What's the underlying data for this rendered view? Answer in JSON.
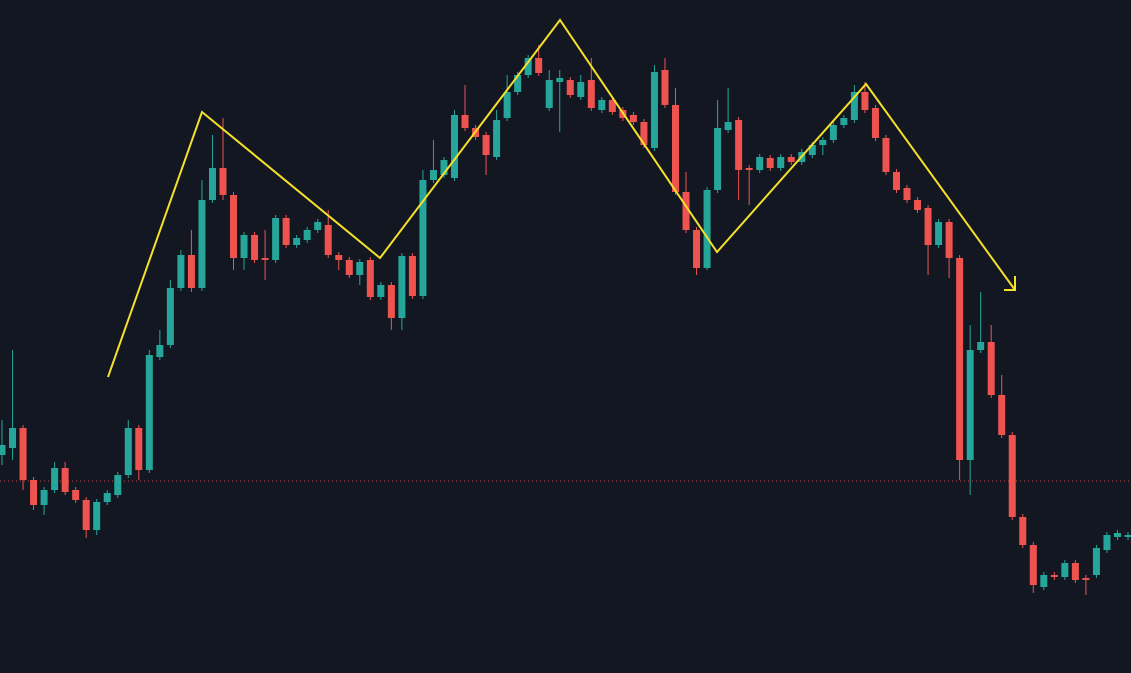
{
  "chart_data": {
    "type": "candlestick",
    "up_color": "#26a69a",
    "down_color": "#ef5350",
    "ylim": [
      27,
      700
    ],
    "open": [
      245,
      252,
      272,
      220,
      195,
      210,
      232,
      210,
      200,
      170,
      198,
      205,
      225,
      272,
      230,
      343,
      355,
      412,
      445,
      412,
      500,
      532,
      505,
      442,
      465,
      442,
      440,
      482,
      455,
      460,
      470,
      475,
      445,
      440,
      425,
      440,
      403,
      415,
      382,
      444,
      404,
      520,
      525,
      522,
      585,
      572,
      565,
      543,
      582,
      608,
      625,
      642,
      592,
      618,
      620,
      603,
      620,
      590,
      600,
      590,
      585,
      578,
      552,
      630,
      595,
      508,
      470,
      432,
      510,
      570,
      580,
      532,
      530,
      542,
      532,
      543,
      538,
      545,
      555,
      560,
      575,
      580,
      608,
      592,
      562,
      528,
      512,
      500,
      492,
      455,
      478,
      442,
      240,
      350,
      358,
      305,
      265,
      183,
      155,
      113,
      125,
      123,
      137,
      122,
      125,
      150,
      163,
      163
    ],
    "high": [
      280,
      350,
      275,
      223,
      213,
      238,
      238,
      213,
      203,
      201,
      210,
      228,
      280,
      275,
      350,
      370,
      420,
      450,
      470,
      520,
      565,
      582,
      508,
      468,
      468,
      470,
      485,
      485,
      465,
      473,
      481,
      490,
      448,
      443,
      441,
      443,
      418,
      418,
      447,
      447,
      530,
      560,
      543,
      590,
      615,
      575,
      568,
      590,
      625,
      628,
      645,
      655,
      630,
      630,
      623,
      625,
      642,
      603,
      603,
      593,
      588,
      581,
      635,
      642,
      612,
      528,
      473,
      513,
      600,
      612,
      583,
      535,
      546,
      545,
      546,
      546,
      551,
      558,
      563,
      578,
      585,
      615,
      618,
      595,
      565,
      531,
      515,
      503,
      495,
      481,
      481,
      445,
      375,
      408,
      375,
      325,
      268,
      186,
      158,
      128,
      128,
      140,
      140,
      125,
      155,
      168,
      170,
      168
    ],
    "low": [
      235,
      240,
      210,
      190,
      185,
      207,
      205,
      197,
      162,
      165,
      195,
      202,
      222,
      220,
      227,
      340,
      352,
      409,
      408,
      409,
      497,
      500,
      430,
      430,
      437,
      420,
      437,
      452,
      452,
      457,
      467,
      442,
      430,
      422,
      415,
      400,
      400,
      370,
      370,
      401,
      401,
      517,
      522,
      519,
      569,
      560,
      525,
      540,
      579,
      605,
      622,
      624,
      589,
      568,
      602,
      600,
      589,
      587,
      585,
      579,
      575,
      552,
      549,
      592,
      505,
      467,
      425,
      430,
      507,
      567,
      500,
      495,
      527,
      529,
      529,
      535,
      535,
      542,
      545,
      557,
      572,
      577,
      587,
      559,
      525,
      507,
      497,
      487,
      425,
      452,
      422,
      220,
      205,
      347,
      302,
      262,
      180,
      152,
      107,
      110,
      120,
      120,
      117,
      105,
      122,
      147,
      160,
      160
    ],
    "close": [
      255,
      272,
      220,
      195,
      210,
      232,
      208,
      200,
      170,
      198,
      207,
      225,
      272,
      230,
      345,
      355,
      412,
      445,
      412,
      500,
      532,
      505,
      442,
      465,
      440,
      440,
      482,
      455,
      462,
      470,
      478,
      445,
      440,
      425,
      438,
      403,
      415,
      382,
      444,
      404,
      520,
      530,
      540,
      585,
      572,
      563,
      545,
      580,
      608,
      625,
      642,
      627,
      620,
      622,
      605,
      618,
      592,
      600,
      588,
      582,
      578,
      555,
      628,
      595,
      508,
      470,
      432,
      510,
      572,
      578,
      530,
      530,
      543,
      532,
      543,
      538,
      548,
      555,
      560,
      575,
      582,
      608,
      590,
      562,
      528,
      510,
      500,
      490,
      455,
      478,
      442,
      240,
      350,
      358,
      305,
      265,
      183,
      155,
      115,
      125,
      123,
      137,
      120,
      120,
      152,
      165,
      167,
      165
    ]
  }
}
